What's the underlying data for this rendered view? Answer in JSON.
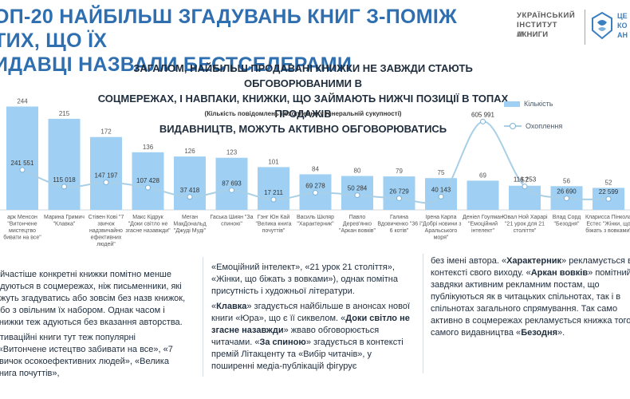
{
  "header": {
    "title_line1": "ОП-20 НАЙБІЛЬШ ЗГАДУВАНЬ КНИГ З-ПОМІЖ ТИХ, ЩО ЇХ",
    "title_line2": "ИДАВЦІ НАЗВАЛИ БЕСТСЕЛЕРАМИ",
    "logo_line1": "УКРАЇНСЬКИЙ",
    "logo_line2": "ІНСТИТУТ",
    "logo_line3": "КНИГИ",
    "partner_logo_text_1": "ЦЕ",
    "partner_logo_text_2": "КО",
    "partner_logo_text_3": "АН"
  },
  "subtitle_line1": "ЗАГАЛОМ, НАЙБІЛЬШ ПРОДАВАНІ КНИЖКИ НЕ ЗАВЖДИ СТАЮТЬ ОБГОВОРЮВАНИМИ В",
  "subtitle_line2": "СОЦМЕРЕЖАХ, І НАВПАКИ, КНИЖКИ, ЩО ЗАЙМАЮТЬ НИЖЧІ ПОЗИЦІЇ В ТОПАХ ПРОДАЖІВ",
  "subtitle_line3": "ВИДАВНИЦТВ, МОЖУТЬ АКТИВНО ОБГОВОРЮВАТИСЬ",
  "chart_note": "(Кількість повідомлень і охоплення у генеральній сукупності)",
  "chart_data": {
    "type": "bar",
    "categories": [
      [
        "арк Менсон",
        "\"Витончене",
        "мистецтво",
        "бивати на все\""
      ],
      [
        "Марина Гримич",
        "\"Клавка\""
      ],
      [
        "Стівен Кові \"7",
        "звичок",
        "надзвичайно",
        "ефективних",
        "людей\""
      ],
      [
        "Макс Кідрук",
        "\"Доки світло не",
        "згасне назавжди\""
      ],
      [
        "Меган",
        "МакДональд",
        "\"Джуді Муді\""
      ],
      [
        "Гаська Шиян \"За",
        "спиною\""
      ],
      [
        "Гэнг Юн Кай",
        "\"Велика книга",
        "почуттів\""
      ],
      [
        "Василь Шкляр",
        "\"Характерник\""
      ],
      [
        "Павло",
        "Дерев'янко",
        "\"Аркан вовків\""
      ],
      [
        "Галина",
        "Вдовиченко \"36 і",
        "6 котів\""
      ],
      [
        "Ірена Карпа",
        "\"Добрі новини з",
        "Аральського",
        "моря\""
      ],
      [
        "Деніел Гоулман",
        "\"Емоційний",
        "інтелект\""
      ],
      [
        "Ювал Ной Харарі",
        "\"21 урок для 21",
        "століття\""
      ],
      [
        "Влад Сорд",
        "\"Безодня\""
      ],
      [
        "Кларисса Пінкола",
        "Естес \"Жінки, що",
        "біжать з вовками\""
      ]
    ],
    "series": [
      {
        "name": "Кількість",
        "type": "bar",
        "color": "#9fd0f3",
        "values": [
          244,
          215,
          172,
          136,
          126,
          123,
          101,
          84,
          80,
          79,
          75,
          69,
          57,
          56,
          52
        ],
        "labels": [
          "244",
          "215",
          "172",
          "136",
          "126",
          "123",
          "101",
          "84",
          "80",
          "79",
          "75",
          "69",
          "57",
          "56",
          "52"
        ]
      },
      {
        "name": "Охоплення",
        "type": "line",
        "color": "#a9cfe6",
        "values": [
          241551,
          115018,
          147197,
          107428,
          37418,
          87693,
          17211,
          69278,
          50284,
          26729,
          40143,
          605991,
          116253,
          26690,
          22599
        ],
        "labels": [
          "241 551",
          "115 018",
          "147 197",
          "107 428",
          "37 418",
          "87 693",
          "17 211",
          "69 278",
          "50 284",
          "26 729",
          "40 143",
          "605 991",
          "116 253",
          "26 690",
          "22 599"
        ]
      }
    ]
  },
  "col1": {
    "p1": "айчастіше конкретні книжки помітно менше адуються в соцмережах, ніж письменники, які ожуть згадуватись або зовсім без назв книжок, або з овільним їх набором. Однак часом і книжки теж адуються без вказання авторства.",
    "p2": "отиваційні книги тут теж популярні («Витончене истецтво забивати на все», «7 звичок осокоефективних людей», «Велика книга почуттів»,"
  },
  "col2": {
    "p1": "«Емоційний інтелект», «21 урок 21 століття», «Жінки, що біжать з вовками»), однак помітна присутність і художньої літератури.",
    "p2_a": "Клавка",
    "p2_b": " згадується найбільше в анонсах нової книги «Юра», що є її сиквелом. «",
    "p2_c": "Доки світло не згасне назавжди",
    "p2_d": "» жваво обговорюється читачами. «",
    "p2_e": "За спиною",
    "p2_f": "» згадується в контексті премій Літакценту та «Вибір читачів», у поширенні медіа-публікацій фігурує"
  },
  "col3": {
    "p1_a": "без імені автора. «",
    "p1_b": "Характерник",
    "p1_c": "» рекламується в контексті свого виходу. «",
    "p1_d": "Аркан вовків",
    "p1_e": "» помітний завдяки активним рекламним постам, що публікуються як в читацьких спільнотах, так і в спільнотах загального спрямування. Так само активно в соцмережах рекламується книжка того самого видавництва «",
    "p1_f": "Безодня",
    "p1_g": "»."
  }
}
